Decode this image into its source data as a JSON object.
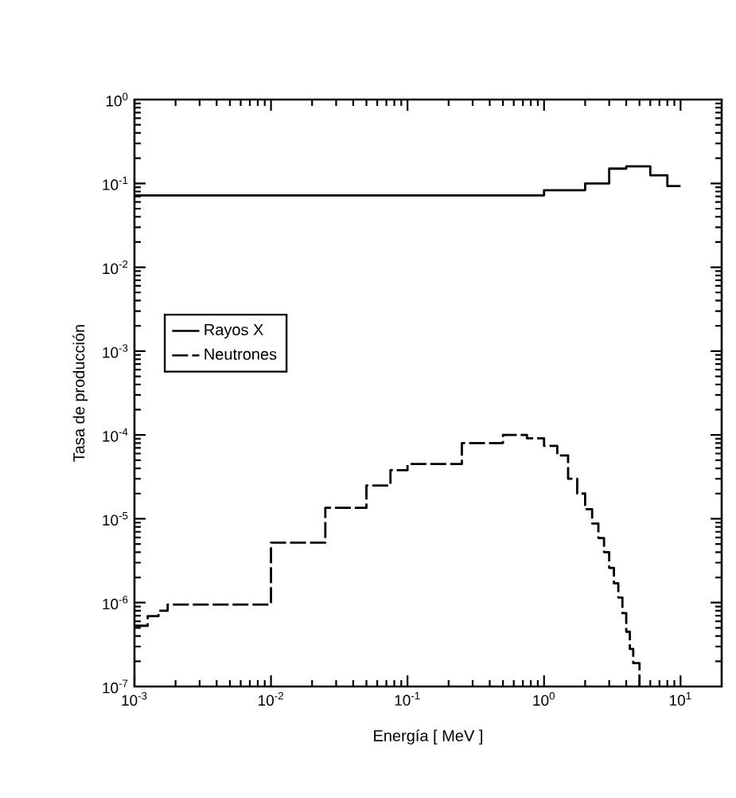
{
  "chart_data": {
    "type": "step",
    "xlabel": "Energía  [ MeV ]",
    "ylabel": "Tasa de producción",
    "log": "xy",
    "xlim": [
      0.001,
      20
    ],
    "ylim": [
      1e-07,
      1
    ],
    "xticks": [
      {
        "value": 0.001,
        "label": "10$^{-3}$"
      },
      {
        "value": 0.01,
        "label": "10$^{-2}$"
      },
      {
        "value": 0.1,
        "label": "10$^{-1}$"
      },
      {
        "value": 1,
        "label": "10$^{0}$"
      },
      {
        "value": 10,
        "label": "10$^{1}$"
      }
    ],
    "yticks": [
      {
        "value": 1e-07,
        "label": "10$^{-7}$"
      },
      {
        "value": 1e-06,
        "label": "10$^{-6}$"
      },
      {
        "value": 1e-05,
        "label": "10$^{-5}$"
      },
      {
        "value": 0.0001,
        "label": "10$^{-4}$"
      },
      {
        "value": 0.001,
        "label": "10$^{-3}$"
      },
      {
        "value": 0.01,
        "label": "10$^{-2}$"
      },
      {
        "value": 0.1,
        "label": "10$^{-1}$"
      },
      {
        "value": 1,
        "label": "10$^{0}$"
      }
    ],
    "legend": "left",
    "grid": false,
    "series": [
      {
        "name": "Rayos X",
        "color": "#000000",
        "line_style": "solid",
        "x": [
          0.001,
          1,
          2,
          3,
          4,
          6,
          8,
          10
        ],
        "values": [
          0.072,
          0.083,
          0.1,
          0.15,
          0.16,
          0.125,
          0.093,
          0.093
        ]
      },
      {
        "name": "Neutrones",
        "color": "#000000",
        "line_style": "dashed",
        "x": [
          0.001,
          0.00125,
          0.0015,
          0.00175,
          0.01,
          0.025,
          0.05,
          0.075,
          0.1,
          0.25,
          0.5,
          0.75,
          1,
          1.25,
          1.5,
          1.75,
          2,
          2.25,
          2.5,
          2.75,
          3,
          3.25,
          3.5,
          3.75,
          4,
          4.25,
          4.5,
          5
        ],
        "values": [
          5.3e-07,
          6.9e-07,
          8e-07,
          9.5e-07,
          5.2e-06,
          1.35e-05,
          2.5e-05,
          3.8e-05,
          4.5e-05,
          8e-05,
          0.0001,
          9.1e-05,
          7.4e-05,
          5.7e-05,
          3e-05,
          2e-05,
          1.3e-05,
          8.8e-06,
          5.9e-06,
          4e-06,
          2.6e-06,
          1.7e-06,
          1.15e-06,
          7.5e-07,
          4.5e-07,
          2.8e-07,
          1.9e-07,
          1e-07
        ]
      }
    ]
  }
}
